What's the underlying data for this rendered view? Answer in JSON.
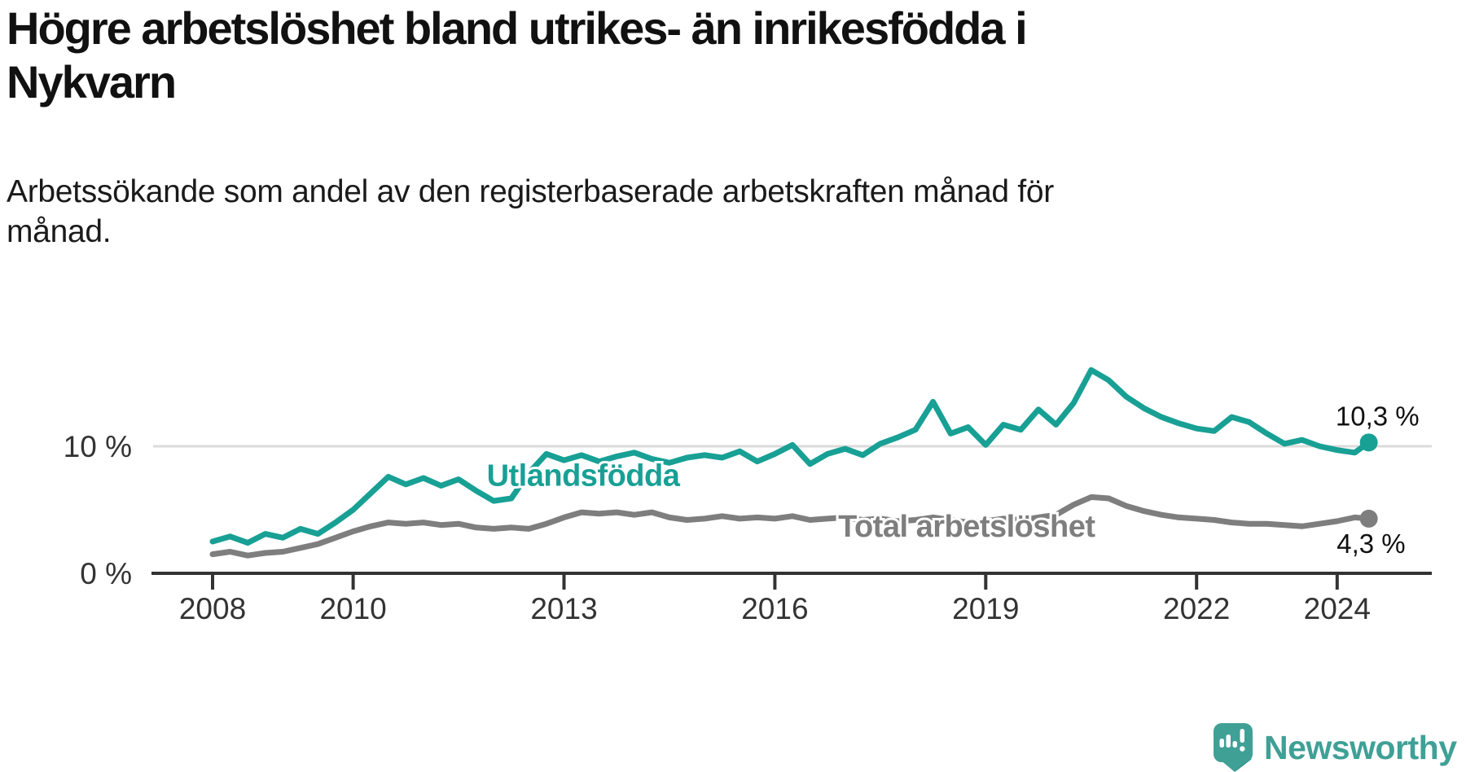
{
  "header": {
    "title": "Högre arbetslöshet bland utrikes- än inrikesfödda i\nNykvarn",
    "subtitle": "Arbetssökande som andel av den registerbaserade arbetskraften månad för\nmånad."
  },
  "chart_data": {
    "type": "line",
    "title": "Högre arbetslöshet bland utrikes- än inrikesfödda i Nykvarn",
    "xlabel": "",
    "ylabel": "Arbetssökande som andel av den registerbaserade arbetskraften",
    "x_ticks": [
      2008,
      2010,
      2013,
      2016,
      2019,
      2022,
      2024
    ],
    "y_ticks": [
      {
        "value": 0,
        "label": "0 %"
      },
      {
        "value": 10,
        "label": "10 %"
      }
    ],
    "xlim": [
      2007.9,
      2025.3
    ],
    "ylim": [
      0,
      17
    ],
    "grid": "horizontal-10-only",
    "legend_position": "inline-labels-on-lines",
    "series": [
      {
        "name": "Utlandsfödda",
        "color": "#18A095",
        "end_label": "10,3 %",
        "end_value": 10.3,
        "label_pos": [
          2011.9,
          6.9
        ],
        "x": [
          2008.0,
          2008.25,
          2008.5,
          2008.75,
          2009.0,
          2009.25,
          2009.5,
          2009.75,
          2010.0,
          2010.25,
          2010.5,
          2010.75,
          2011.0,
          2011.25,
          2011.5,
          2011.75,
          2012.0,
          2012.25,
          2012.5,
          2012.75,
          2013.0,
          2013.25,
          2013.5,
          2013.75,
          2014.0,
          2014.25,
          2014.5,
          2014.75,
          2015.0,
          2015.25,
          2015.5,
          2015.75,
          2016.0,
          2016.25,
          2016.5,
          2016.75,
          2017.0,
          2017.25,
          2017.5,
          2017.75,
          2018.0,
          2018.25,
          2018.5,
          2018.75,
          2019.0,
          2019.25,
          2019.5,
          2019.75,
          2020.0,
          2020.25,
          2020.5,
          2020.75,
          2021.0,
          2021.25,
          2021.5,
          2021.75,
          2022.0,
          2022.25,
          2022.5,
          2022.75,
          2023.0,
          2023.25,
          2023.5,
          2023.75,
          2024.0,
          2024.25,
          2024.45
        ],
        "values": [
          2.5,
          2.9,
          2.4,
          3.1,
          2.8,
          3.5,
          3.1,
          4.0,
          5.0,
          6.3,
          7.6,
          7.0,
          7.5,
          6.9,
          7.4,
          6.5,
          5.7,
          5.9,
          7.9,
          9.4,
          8.9,
          9.3,
          8.8,
          9.2,
          9.5,
          9.0,
          8.7,
          9.1,
          9.3,
          9.1,
          9.6,
          8.8,
          9.4,
          10.1,
          8.6,
          9.4,
          9.8,
          9.3,
          10.2,
          10.7,
          11.3,
          13.5,
          11.0,
          11.5,
          10.1,
          11.7,
          11.3,
          12.9,
          11.7,
          13.4,
          16.0,
          15.2,
          13.9,
          13.0,
          12.3,
          11.8,
          11.4,
          11.2,
          12.3,
          11.9,
          11.0,
          10.2,
          10.5,
          10.0,
          9.7,
          9.5,
          10.3
        ]
      },
      {
        "name": "Total arbetslöshet",
        "color": "#7E7E7E",
        "end_label": "4,3 %",
        "end_value": 4.3,
        "label_pos": [
          2016.9,
          2.9
        ],
        "x": [
          2008.0,
          2008.25,
          2008.5,
          2008.75,
          2009.0,
          2009.25,
          2009.5,
          2009.75,
          2010.0,
          2010.25,
          2010.5,
          2010.75,
          2011.0,
          2011.25,
          2011.5,
          2011.75,
          2012.0,
          2012.25,
          2012.5,
          2012.75,
          2013.0,
          2013.25,
          2013.5,
          2013.75,
          2014.0,
          2014.25,
          2014.5,
          2014.75,
          2015.0,
          2015.25,
          2015.5,
          2015.75,
          2016.0,
          2016.25,
          2016.5,
          2016.75,
          2017.0,
          2017.25,
          2017.5,
          2017.75,
          2018.0,
          2018.25,
          2018.5,
          2018.75,
          2019.0,
          2019.25,
          2019.5,
          2019.75,
          2020.0,
          2020.25,
          2020.5,
          2020.75,
          2021.0,
          2021.25,
          2021.5,
          2021.75,
          2022.0,
          2022.25,
          2022.5,
          2022.75,
          2023.0,
          2023.25,
          2023.5,
          2023.75,
          2024.0,
          2024.25,
          2024.45
        ],
        "values": [
          1.5,
          1.7,
          1.4,
          1.6,
          1.7,
          2.0,
          2.3,
          2.8,
          3.3,
          3.7,
          4.0,
          3.9,
          4.0,
          3.8,
          3.9,
          3.6,
          3.5,
          3.6,
          3.5,
          3.9,
          4.4,
          4.8,
          4.7,
          4.8,
          4.6,
          4.8,
          4.4,
          4.2,
          4.3,
          4.5,
          4.3,
          4.4,
          4.3,
          4.5,
          4.2,
          4.3,
          4.4,
          4.2,
          4.3,
          4.1,
          4.2,
          4.4,
          4.2,
          4.0,
          4.1,
          4.3,
          4.2,
          4.4,
          4.6,
          5.4,
          6.0,
          5.9,
          5.3,
          4.9,
          4.6,
          4.4,
          4.3,
          4.2,
          4.0,
          3.9,
          3.9,
          3.8,
          3.7,
          3.9,
          4.1,
          4.4,
          4.3
        ]
      }
    ]
  },
  "footer": {
    "brand": "Newsworthy",
    "brand_color": "#3FA096",
    "logo_icon": "speech-bubble-bar-chart-icon"
  }
}
